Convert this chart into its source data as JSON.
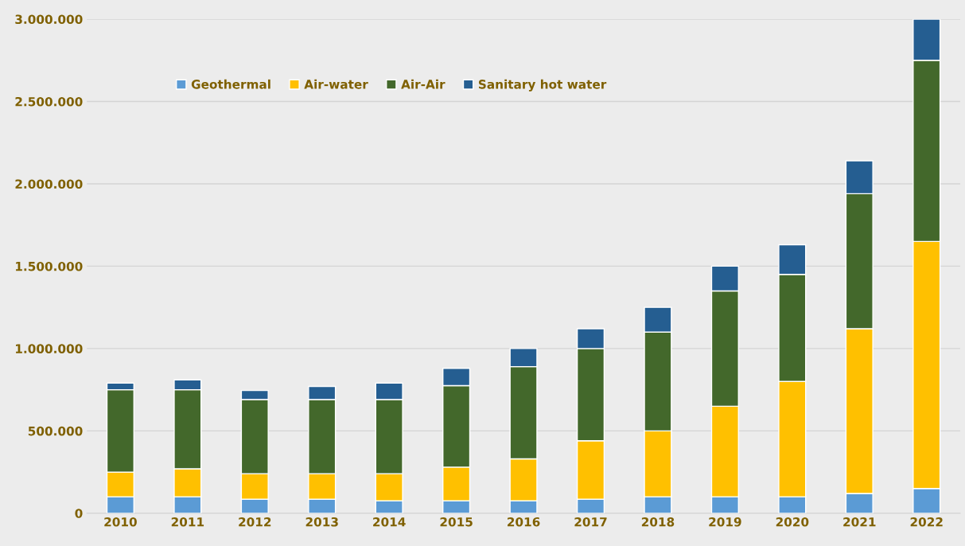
{
  "chart_data": {
    "type": "bar",
    "stacked": true,
    "categories": [
      "2010",
      "2011",
      "2012",
      "2013",
      "2014",
      "2015",
      "2016",
      "2017",
      "2018",
      "2019",
      "2020",
      "2021",
      "2022"
    ],
    "series": [
      {
        "name": "Geothermal",
        "color": "#5b9bd5",
        "values": [
          100000,
          100000,
          85000,
          85000,
          75000,
          75000,
          75000,
          85000,
          100000,
          100000,
          100000,
          120000,
          150000
        ]
      },
      {
        "name": "Air-water",
        "color": "#ffc000",
        "values": [
          150000,
          170000,
          155000,
          155000,
          165000,
          205000,
          255000,
          355000,
          400000,
          550000,
          700000,
          1000000,
          1500000
        ]
      },
      {
        "name": "Air-Air",
        "color": "#43682b",
        "values": [
          500000,
          480000,
          450000,
          450000,
          450000,
          495000,
          560000,
          560000,
          600000,
          700000,
          650000,
          820000,
          1100000
        ]
      },
      {
        "name": "Sanitary hot water",
        "color": "#255e91",
        "values": [
          40000,
          60000,
          55000,
          80000,
          100000,
          105000,
          110000,
          120000,
          150000,
          150000,
          180000,
          200000,
          250000
        ]
      }
    ],
    "ylim": [
      0,
      3000000
    ],
    "yticks": [
      {
        "value": 0,
        "label": "0"
      },
      {
        "value": 500000,
        "label": "500.000"
      },
      {
        "value": 1000000,
        "label": "1.000.000"
      },
      {
        "value": 1500000,
        "label": "1.500.000"
      },
      {
        "value": 2000000,
        "label": "2.000.000"
      },
      {
        "value": 2500000,
        "label": "2.500.000"
      },
      {
        "value": 3000000,
        "label": "3.000.000"
      }
    ],
    "grid": "y",
    "legend": "top left"
  }
}
